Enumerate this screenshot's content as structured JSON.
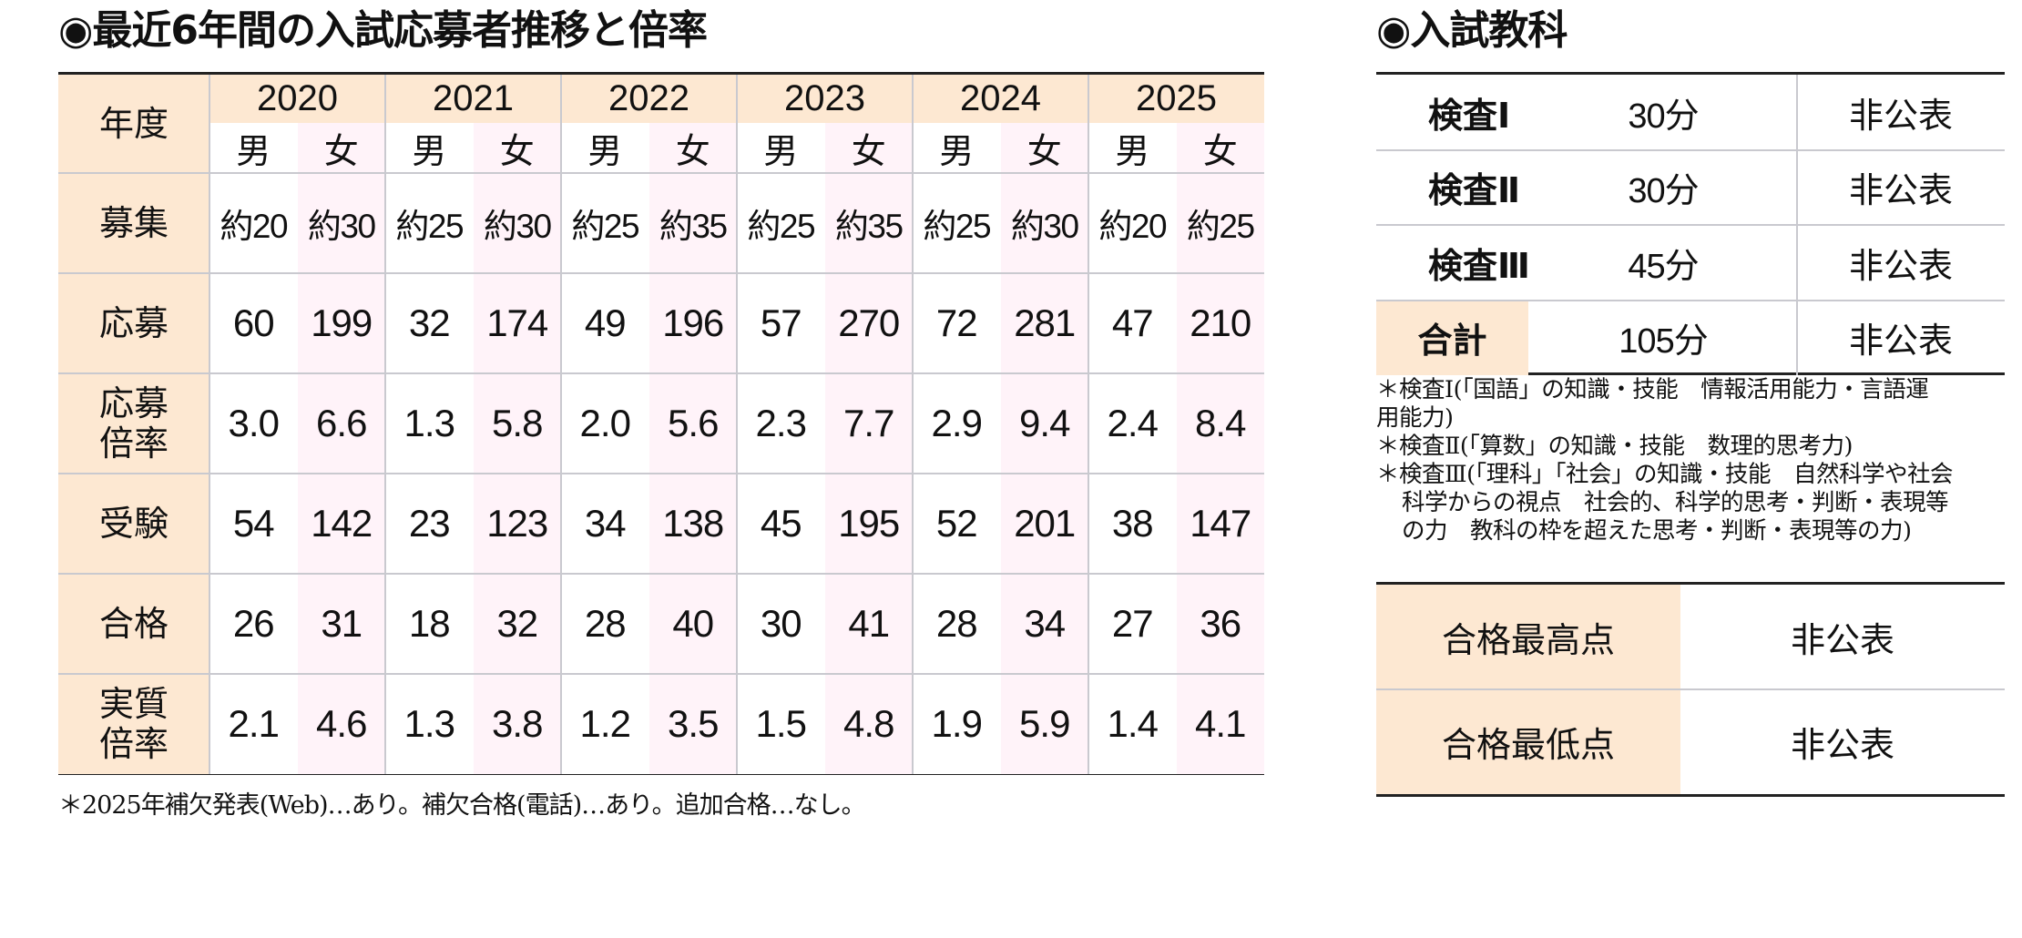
{
  "left": {
    "title": "◉最近6年間の入試応募者推移と倍率",
    "header_label": "年度",
    "years": [
      "2020",
      "2021",
      "2022",
      "2023",
      "2024",
      "2025"
    ],
    "sexes": [
      "男",
      "女"
    ],
    "rows": [
      {
        "label": "募集",
        "values": [
          "約20",
          "約30",
          "約25",
          "約30",
          "約25",
          "約35",
          "約25",
          "約35",
          "約25",
          "約30",
          "約20",
          "約25"
        ]
      },
      {
        "label": "応募",
        "values": [
          "60",
          "199",
          "32",
          "174",
          "49",
          "196",
          "57",
          "270",
          "72",
          "281",
          "47",
          "210"
        ]
      },
      {
        "label": "応募\n倍率",
        "label_lines": [
          "応募",
          "倍率"
        ],
        "values": [
          "3.0",
          "6.6",
          "1.3",
          "5.8",
          "2.0",
          "5.6",
          "2.3",
          "7.7",
          "2.9",
          "9.4",
          "2.4",
          "8.4"
        ]
      },
      {
        "label": "受験",
        "values": [
          "54",
          "142",
          "23",
          "123",
          "34",
          "138",
          "45",
          "195",
          "52",
          "201",
          "38",
          "147"
        ]
      },
      {
        "label": "合格",
        "values": [
          "26",
          "31",
          "18",
          "32",
          "28",
          "40",
          "30",
          "41",
          "28",
          "34",
          "27",
          "36"
        ]
      },
      {
        "label": "実質\n倍率",
        "label_lines": [
          "実質",
          "倍率"
        ],
        "values": [
          "2.1",
          "4.6",
          "1.3",
          "3.8",
          "1.2",
          "3.5",
          "1.5",
          "4.8",
          "1.9",
          "5.9",
          "1.4",
          "4.1"
        ]
      }
    ],
    "footnote": "＊2025年補欠発表(Web)…あり。補欠合格(電話)…あり。追加合格…なし。"
  },
  "right": {
    "title": "◉入試教科",
    "subjects": [
      {
        "label": "検査Ⅰ",
        "time": "30分",
        "score": "非公表"
      },
      {
        "label": "検査Ⅱ",
        "time": "30分",
        "score": "非公表"
      },
      {
        "label": "検査Ⅲ",
        "time": "45分",
        "score": "非公表"
      },
      {
        "label": "合計",
        "time": "105分",
        "score": "非公表"
      }
    ],
    "notes": [
      "＊検査Ⅰ(「国語」の知識・技能　情報活用能力・言語運",
      "用能力)",
      "＊検査Ⅱ(「算数」の知識・技能　数理的思考力)",
      "＊検査Ⅲ(「理科」「社会」の知識・技能　自然科学や社会",
      "科学からの視点　社会的、科学的思考・判断・表現等",
      "の力　教科の枠を超えた思考・判断・表現等の力)"
    ],
    "scores": [
      {
        "label": "合格最高点",
        "value": "非公表"
      },
      {
        "label": "合格最低点",
        "value": "非公表"
      }
    ]
  },
  "colors": {
    "header_bg": "#fde8d2",
    "female_col_bg": "#fff3f9",
    "rule": "#222222",
    "grid_line": "#c9c9cf"
  }
}
